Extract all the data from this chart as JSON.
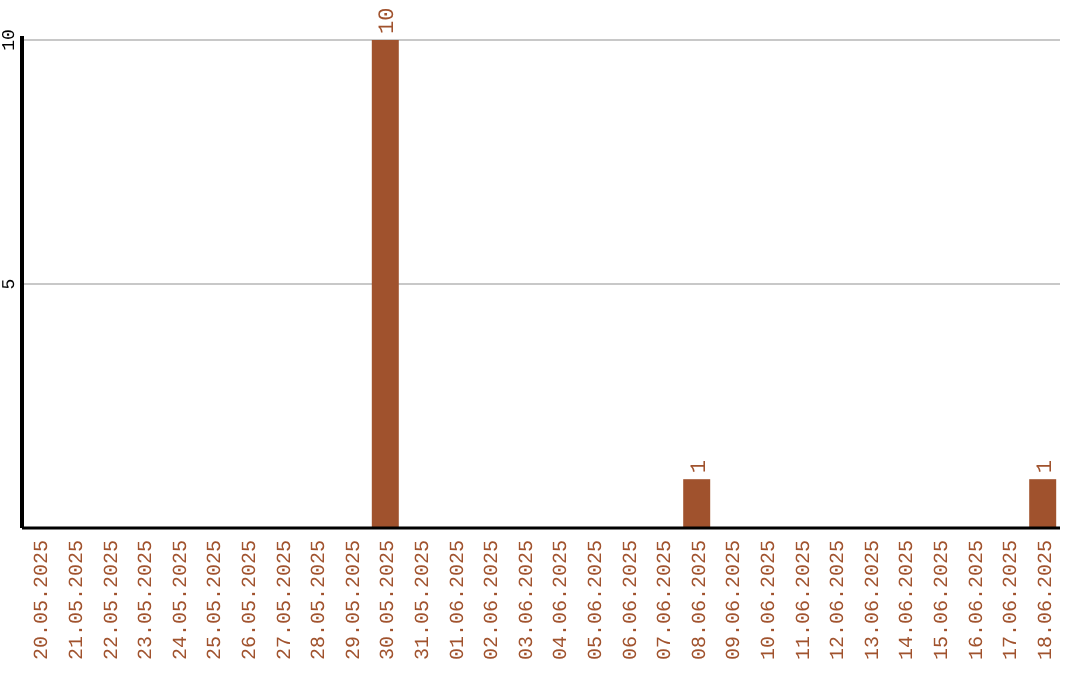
{
  "chart_data": {
    "type": "bar",
    "categories": [
      "20.05.2025",
      "21.05.2025",
      "22.05.2025",
      "23.05.2025",
      "24.05.2025",
      "25.05.2025",
      "26.05.2025",
      "27.05.2025",
      "28.05.2025",
      "29.05.2025",
      "30.05.2025",
      "31.05.2025",
      "01.06.2025",
      "02.06.2025",
      "03.06.2025",
      "04.06.2025",
      "05.06.2025",
      "06.06.2025",
      "07.06.2025",
      "08.06.2025",
      "09.06.2025",
      "10.06.2025",
      "11.06.2025",
      "12.06.2025",
      "13.06.2025",
      "14.06.2025",
      "15.06.2025",
      "16.06.2025",
      "17.06.2025",
      "18.06.2025"
    ],
    "values": [
      0,
      0,
      0,
      0,
      0,
      0,
      0,
      0,
      0,
      0,
      10,
      0,
      0,
      0,
      0,
      0,
      0,
      0,
      0,
      1,
      0,
      0,
      0,
      0,
      0,
      0,
      0,
      0,
      0,
      1
    ],
    "value_labels": [
      null,
      null,
      null,
      null,
      null,
      null,
      null,
      null,
      null,
      null,
      "10",
      null,
      null,
      null,
      null,
      null,
      null,
      null,
      null,
      "1",
      null,
      null,
      null,
      null,
      null,
      null,
      null,
      null,
      null,
      "1"
    ],
    "color": "#a0522d",
    "ylim": [
      0,
      10
    ],
    "yticks": [
      5,
      10
    ],
    "grid": "y"
  }
}
